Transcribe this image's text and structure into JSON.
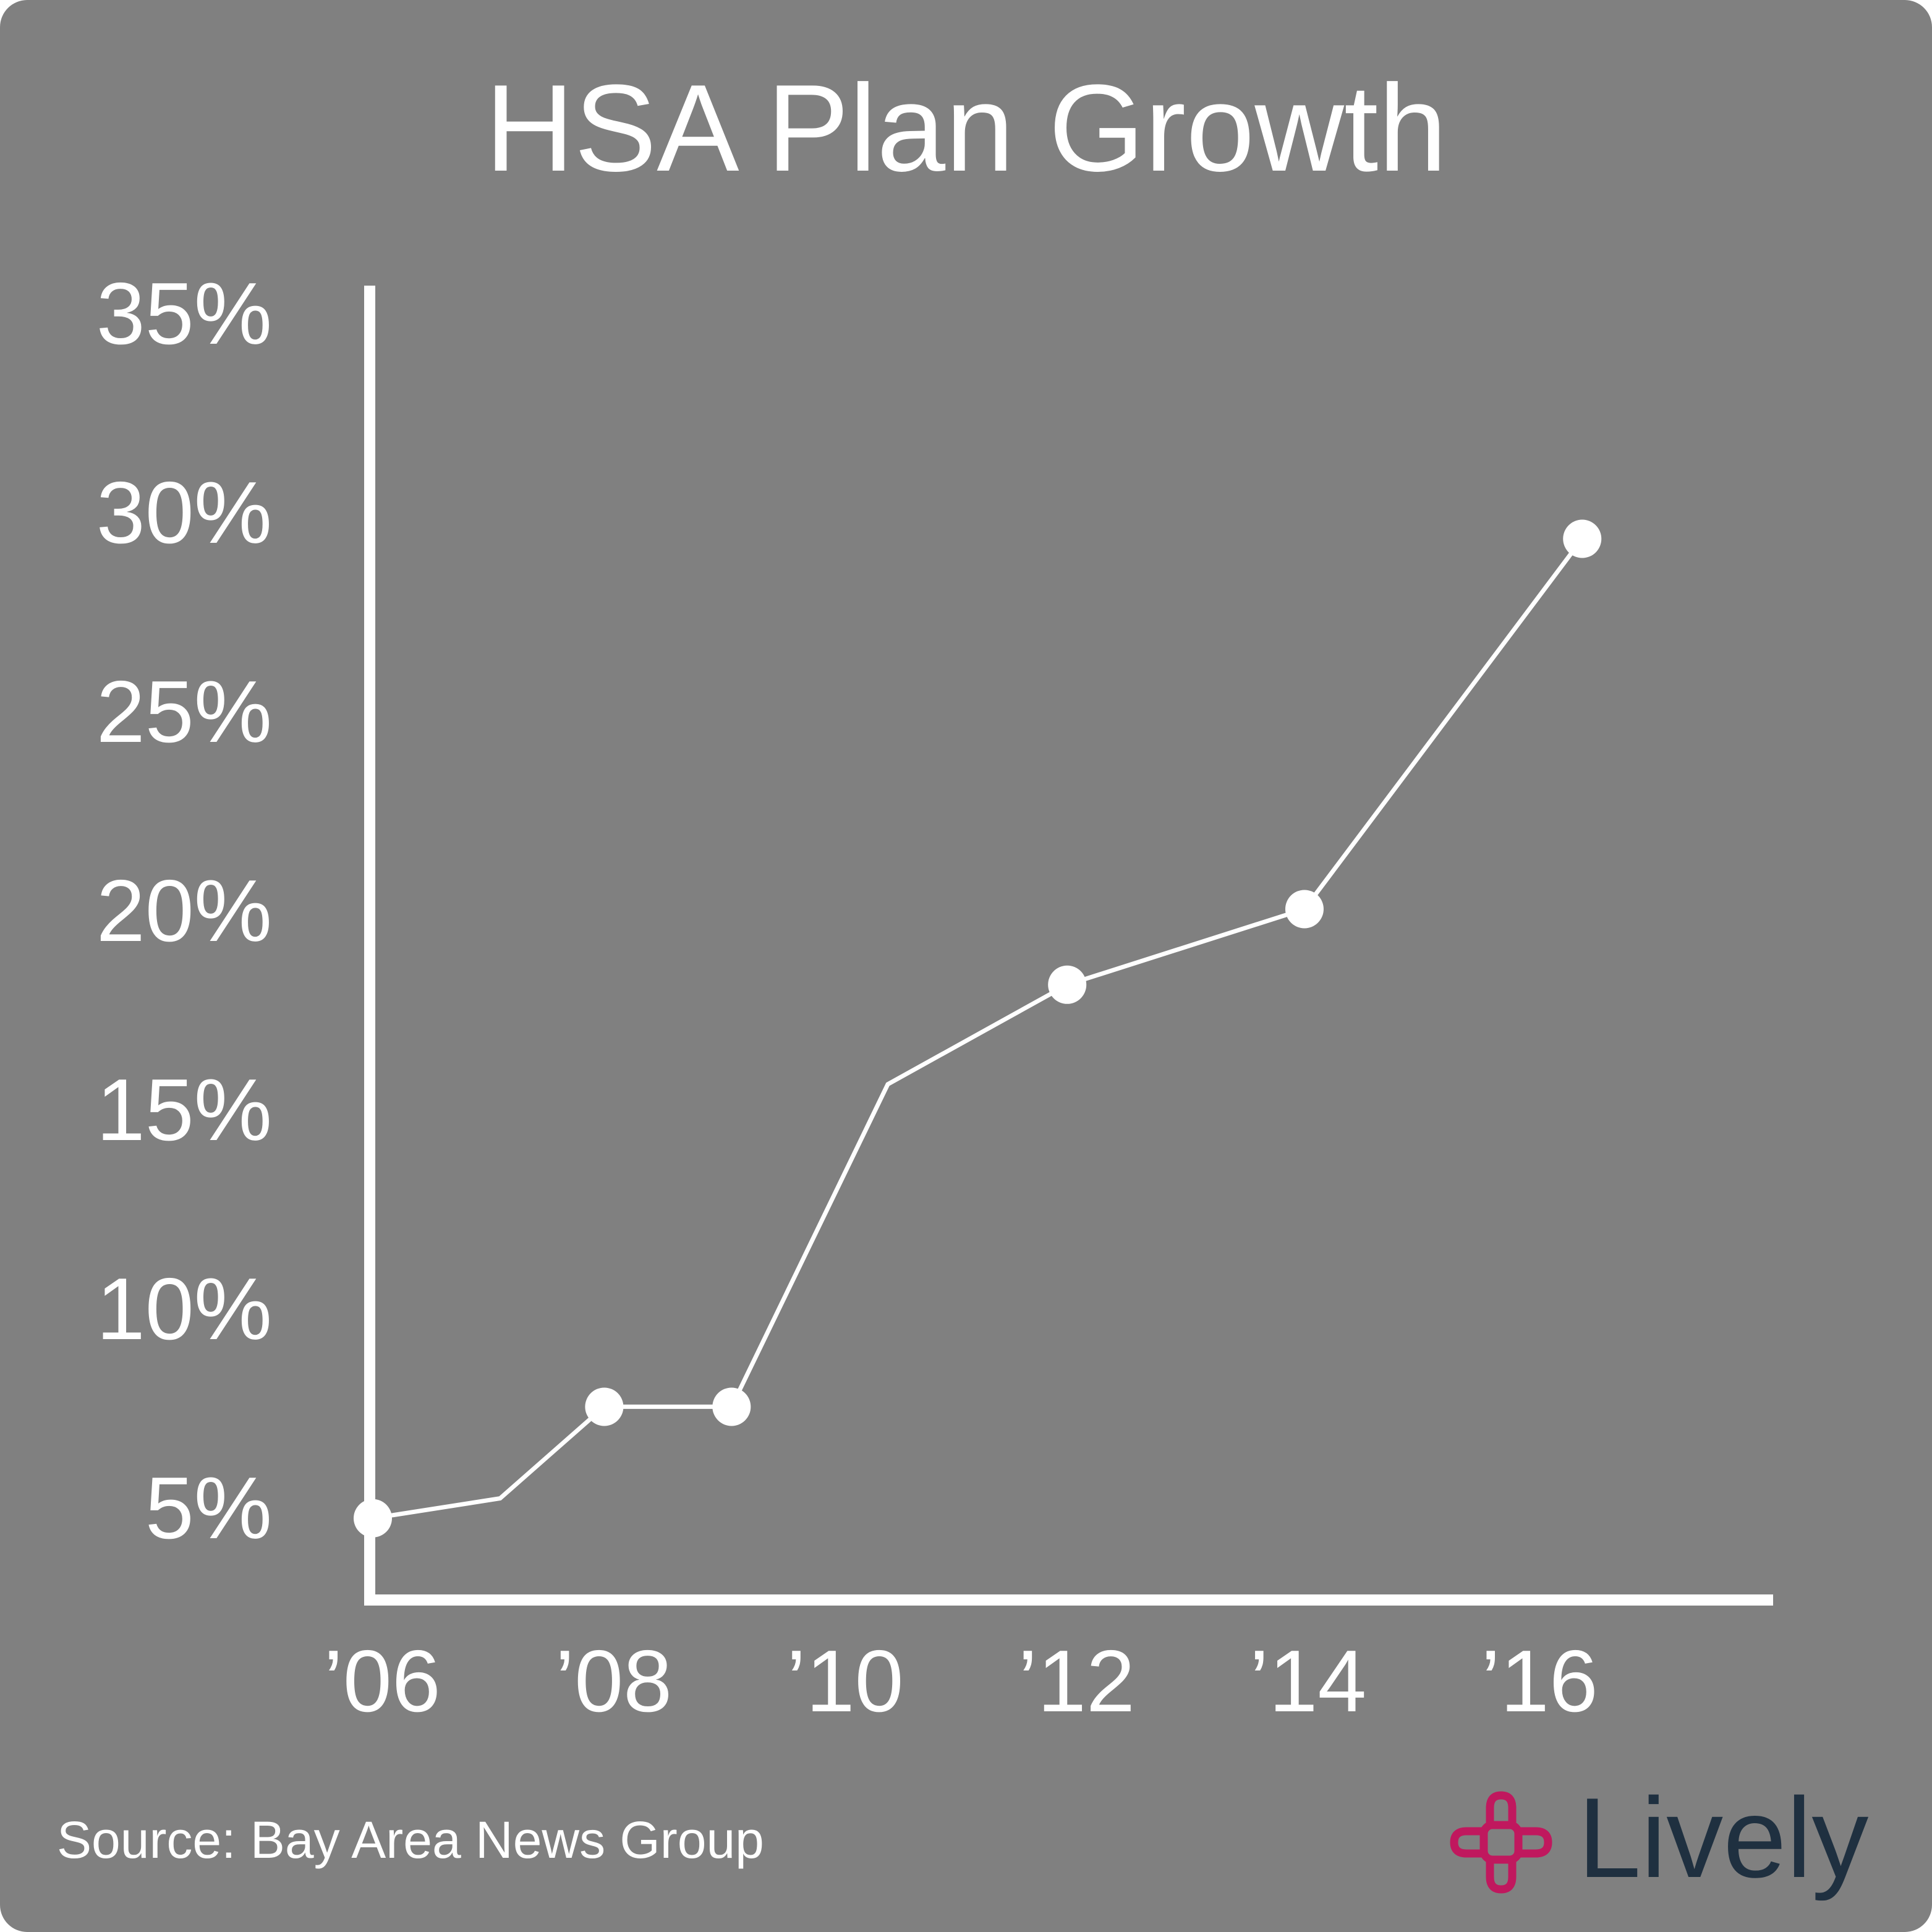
{
  "header": {
    "title": "HSA Plan Growth"
  },
  "footer": {
    "source": "Source: Bay Area News Group"
  },
  "brand": {
    "name": "Lively",
    "icon": "interlocking-cross-logo-icon",
    "mark_color": "#c0185e",
    "wordmark_color": "#1f3040"
  },
  "colors": {
    "background": "#808080",
    "foreground": "#ffffff"
  },
  "chart_data": {
    "type": "line",
    "title": "HSA Plan Growth",
    "xlabel": "",
    "ylabel": "",
    "xlim": [
      2006,
      2018.3
    ],
    "ylim": [
      2.5,
      36
    ],
    "x_ticks": [
      2006,
      2008,
      2010,
      2012,
      2014,
      2016
    ],
    "x_tick_labels": [
      "’06",
      "’08",
      "’10",
      "’12",
      "’14",
      "’16"
    ],
    "y_ticks": [
      5,
      10,
      15,
      20,
      25,
      30,
      35
    ],
    "y_tick_labels": [
      "5%",
      "10%",
      "15%",
      "20%",
      "25%",
      "30%",
      "35%"
    ],
    "grid": false,
    "legend": "none",
    "series": [
      {
        "x": [
          2006,
          2007.1,
          2008,
          2009.1,
          2010.45,
          2012,
          2014.05,
          2016.45
        ],
        "y": [
          4.6,
          5.1,
          7.4,
          7.4,
          15.5,
          18.0,
          19.9,
          29.2
        ],
        "markers": [
          true,
          false,
          true,
          true,
          false,
          true,
          true,
          true
        ]
      }
    ]
  }
}
